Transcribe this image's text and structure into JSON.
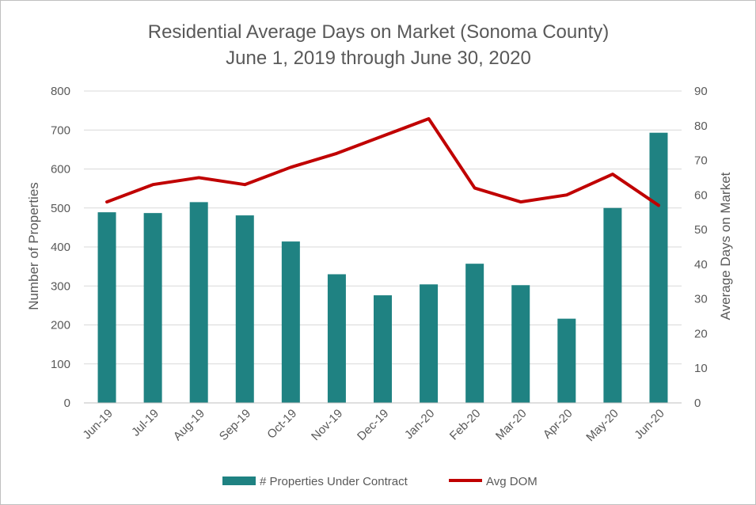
{
  "chart_data": {
    "type": "bar",
    "title": "Residential Average Days on Market (Sonoma County)",
    "subtitle": "June 1, 2019 through June 30, 2020",
    "categories": [
      "Jun-19",
      "Jul-19",
      "Aug-19",
      "Sep-19",
      "Oct-19",
      "Nov-19",
      "Dec-19",
      "Jan-20",
      "Feb-20",
      "Mar-20",
      "Apr-20",
      "May-20",
      "Jun-20"
    ],
    "series": [
      {
        "name": "# Properties Under Contract",
        "type": "bar",
        "axis": "left",
        "color": "#1F8282",
        "values": [
          489,
          487,
          515,
          481,
          414,
          330,
          276,
          304,
          357,
          302,
          216,
          500,
          693
        ]
      },
      {
        "name": "Avg DOM",
        "type": "line",
        "axis": "right",
        "color": "#C00000",
        "values": [
          58,
          63,
          65,
          63,
          68,
          72,
          77,
          82,
          62,
          58,
          60,
          66,
          57
        ]
      }
    ],
    "ylabel": "Number of Properties",
    "ylim": [
      0,
      800
    ],
    "yticks": [
      0,
      100,
      200,
      300,
      400,
      500,
      600,
      700,
      800
    ],
    "y2label": "Average Days on Market",
    "y2lim": [
      0,
      90
    ],
    "y2ticks": [
      0,
      10,
      20,
      30,
      40,
      50,
      60,
      70,
      80,
      90
    ],
    "grid": true,
    "legend": "bottom"
  }
}
